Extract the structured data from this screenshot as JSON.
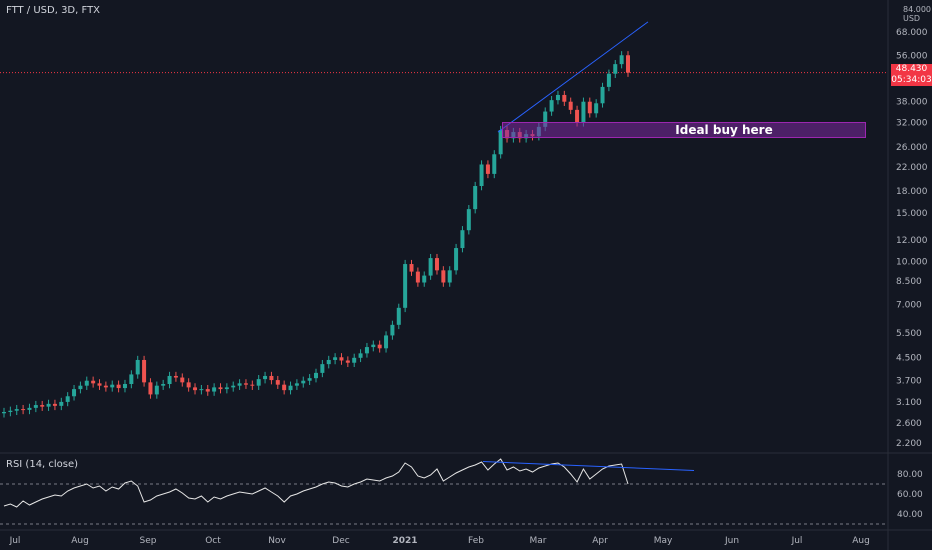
{
  "header": {
    "symbol_line": "FTT / USD, 3D, FTX"
  },
  "axis": {
    "currency_top": "84.000",
    "currency": "USD"
  },
  "last_price": {
    "value": "48.430",
    "countdown": "05:34:03"
  },
  "annotation": {
    "text": "Ideal buy here",
    "low": 28.5,
    "high": 31.2
  },
  "rsi": {
    "title": "RSI (14, close)",
    "levels": [
      70,
      30
    ]
  },
  "colors": {
    "up": "#26a69a",
    "down": "#ef5350",
    "trendline": "#2962ff",
    "annotation": "#9c27b0"
  },
  "chart_data": {
    "type": "candlestick",
    "title": "",
    "x_tick_labels": [
      "Jul",
      "Aug",
      "Sep",
      "Oct",
      "Nov",
      "Dec",
      "2021",
      "Feb",
      "Mar",
      "Apr",
      "May",
      "Jun",
      "Jul",
      "Aug"
    ],
    "y_tick_labels": [
      "68.000",
      "56.000",
      "38.000",
      "32.000",
      "26.000",
      "22.000",
      "18.000",
      "15.000",
      "12.000",
      "10.000",
      "8.500",
      "7.000",
      "5.500",
      "4.500",
      "3.700",
      "3.100",
      "2.600",
      "2.200"
    ],
    "y_tick_values": [
      68,
      56,
      38,
      32,
      26,
      22,
      18,
      15,
      12,
      10,
      8.5,
      7.0,
      5.5,
      4.5,
      3.7,
      3.1,
      2.6,
      2.2
    ],
    "y_scale": "log",
    "closes": [
      2.85,
      2.88,
      2.92,
      2.9,
      2.95,
      3.02,
      2.98,
      3.05,
      3.0,
      3.1,
      3.25,
      3.45,
      3.55,
      3.7,
      3.62,
      3.55,
      3.5,
      3.58,
      3.48,
      3.6,
      3.9,
      4.4,
      3.65,
      3.3,
      3.55,
      3.6,
      3.85,
      3.8,
      3.65,
      3.5,
      3.42,
      3.45,
      3.38,
      3.5,
      3.45,
      3.5,
      3.55,
      3.62,
      3.58,
      3.55,
      3.75,
      3.85,
      3.72,
      3.58,
      3.42,
      3.55,
      3.62,
      3.7,
      3.78,
      3.95,
      4.25,
      4.4,
      4.5,
      4.38,
      4.3,
      4.48,
      4.65,
      4.9,
      5.0,
      4.85,
      5.4,
      5.9,
      6.8,
      9.8,
      9.2,
      8.4,
      8.9,
      10.3,
      9.3,
      8.4,
      9.3,
      11.2,
      13.0,
      15.5,
      18.8,
      22.5,
      20.8,
      24.5,
      30.0,
      28.0,
      29.5,
      28.0,
      29.0,
      28.5,
      30.8,
      35.0,
      38.5,
      40.2,
      38.0,
      35.5,
      32.0,
      38.0,
      34.5,
      37.5,
      43.0,
      48.0,
      52.0,
      56.0,
      48.43
    ],
    "rsi_values": [
      48,
      50,
      47,
      53,
      49,
      52,
      55,
      57,
      59,
      58,
      63,
      66,
      68,
      70,
      66,
      68,
      63,
      67,
      65,
      71,
      73,
      68,
      52,
      54,
      58,
      60,
      62,
      65,
      61,
      56,
      55,
      58,
      52,
      57,
      55,
      58,
      60,
      62,
      61,
      60,
      63,
      66,
      62,
      58,
      52,
      58,
      60,
      63,
      65,
      67,
      70,
      72,
      71,
      68,
      67,
      70,
      72,
      75,
      74,
      73,
      76,
      78,
      82,
      91,
      87,
      78,
      76,
      79,
      85,
      73,
      77,
      81,
      84,
      87,
      89,
      92,
      84,
      90,
      95,
      84,
      87,
      83,
      85,
      82,
      86,
      88,
      90,
      91,
      87,
      80,
      72,
      85,
      75,
      80,
      85,
      88,
      89,
      90,
      70
    ]
  }
}
